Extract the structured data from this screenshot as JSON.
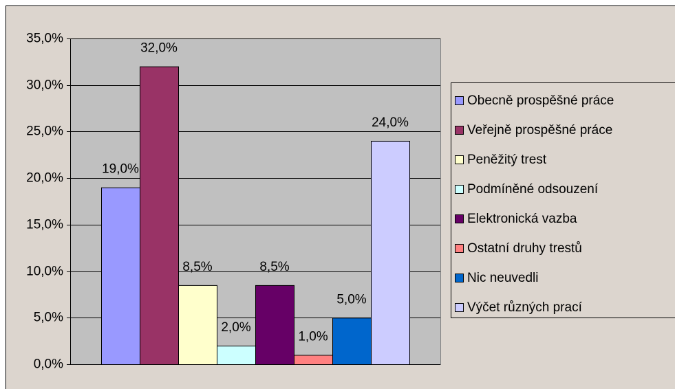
{
  "chart_data": {
    "type": "bar",
    "series": [
      {
        "name": "Obecně prospěšné práce",
        "color": "#9999ff",
        "values": [
          19.0
        ],
        "value_labels": [
          "19,0%"
        ]
      },
      {
        "name": "Veřejně prospěšné práce",
        "color": "#993366",
        "values": [
          32.0
        ],
        "value_labels": [
          "32,0%"
        ]
      },
      {
        "name": "Peněžitý trest",
        "color": "#ffffcc",
        "values": [
          8.5
        ],
        "value_labels": [
          "8,5%"
        ]
      },
      {
        "name": "Podmíněné odsouzení",
        "color": "#ccffff",
        "values": [
          2.0
        ],
        "value_labels": [
          "2,0%"
        ]
      },
      {
        "name": "Elektronická vazba",
        "color": "#660066",
        "values": [
          8.5
        ],
        "value_labels": [
          "8,5%"
        ]
      },
      {
        "name": "Ostatní druhy trestů",
        "color": "#ff8080",
        "values": [
          1.0
        ],
        "value_labels": [
          "1,0%"
        ]
      },
      {
        "name": "Nic neuvedli",
        "color": "#0066cc",
        "values": [
          5.0
        ],
        "value_labels": [
          "5,0%"
        ]
      },
      {
        "name": "Výčet různých prací",
        "color": "#ccccff",
        "values": [
          24.0
        ],
        "value_labels": [
          "24,0%"
        ]
      }
    ],
    "ylim": [
      0,
      35
    ],
    "yticks": [
      {
        "value": 0,
        "label": "0,0%"
      },
      {
        "value": 5,
        "label": "5,0%"
      },
      {
        "value": 10,
        "label": "10,0%"
      },
      {
        "value": 15,
        "label": "15,0%"
      },
      {
        "value": 20,
        "label": "20,0%"
      },
      {
        "value": 25,
        "label": "25,0%"
      },
      {
        "value": 30,
        "label": "30,0%"
      },
      {
        "value": 35,
        "label": "35,0%"
      }
    ],
    "grid": true,
    "legend": "right"
  }
}
